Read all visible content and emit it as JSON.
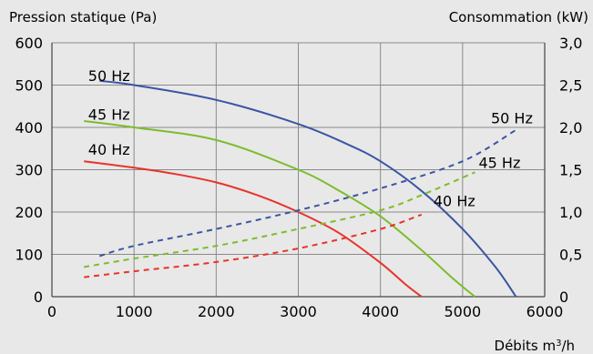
{
  "chart_data": {
    "type": "line",
    "y_left_label": "Pression statique (Pa)",
    "y_right_label": "Consommation (kW)",
    "x_label_prefix": "Débits m",
    "x_label_sup": "3",
    "x_label_suffix": "/h",
    "xlim": [
      0,
      6000
    ],
    "ylim_left": [
      0,
      600
    ],
    "ylim_right": [
      0,
      3.0
    ],
    "x_ticks": [
      {
        "value": 0,
        "label": "0"
      },
      {
        "value": 1000,
        "label": "1000"
      },
      {
        "value": 2000,
        "label": "2000"
      },
      {
        "value": 3000,
        "label": "3000"
      },
      {
        "value": 4000,
        "label": "4000"
      },
      {
        "value": 5000,
        "label": "5000"
      },
      {
        "value": 6000,
        "label": "6000"
      }
    ],
    "y_left_ticks": [
      {
        "value": 0,
        "label": "0"
      },
      {
        "value": 100,
        "label": "100"
      },
      {
        "value": 200,
        "label": "200"
      },
      {
        "value": 300,
        "label": "300"
      },
      {
        "value": 400,
        "label": "400"
      },
      {
        "value": 500,
        "label": "500"
      },
      {
        "value": 600,
        "label": "600"
      }
    ],
    "y_right_ticks": [
      {
        "value": 0,
        "label": "0"
      },
      {
        "value": 0.5,
        "label": "0,5"
      },
      {
        "value": 1.0,
        "label": "1,0"
      },
      {
        "value": 1.5,
        "label": "1,5"
      },
      {
        "value": 2.0,
        "label": "2,0"
      },
      {
        "value": 2.5,
        "label": "2,5"
      },
      {
        "value": 3.0,
        "label": "3,0"
      }
    ],
    "grid": true,
    "pressure_series": [
      {
        "name": "50 Hz",
        "color": "#3a55a4",
        "axis": "left",
        "points": [
          [
            580,
            510
          ],
          [
            1000,
            500
          ],
          [
            2000,
            465
          ],
          [
            3000,
            408
          ],
          [
            3600,
            360
          ],
          [
            4000,
            320
          ],
          [
            4500,
            250
          ],
          [
            5000,
            160
          ],
          [
            5400,
            70
          ],
          [
            5650,
            0
          ]
        ]
      },
      {
        "name": "45 Hz",
        "color": "#7cbd2c",
        "axis": "left",
        "points": [
          [
            390,
            415
          ],
          [
            1000,
            400
          ],
          [
            2000,
            370
          ],
          [
            3000,
            300
          ],
          [
            3500,
            250
          ],
          [
            4000,
            190
          ],
          [
            4500,
            110
          ],
          [
            4900,
            40
          ],
          [
            5150,
            0
          ]
        ]
      },
      {
        "name": "40 Hz",
        "color": "#e8332a",
        "axis": "left",
        "points": [
          [
            390,
            320
          ],
          [
            1000,
            305
          ],
          [
            1500,
            290
          ],
          [
            2000,
            270
          ],
          [
            2500,
            240
          ],
          [
            3000,
            200
          ],
          [
            3500,
            150
          ],
          [
            4000,
            80
          ],
          [
            4300,
            30
          ],
          [
            4500,
            0
          ]
        ]
      }
    ],
    "power_series": [
      {
        "name": "50 Hz",
        "color": "#3a55a4",
        "axis": "right",
        "points": [
          [
            580,
            0.48
          ],
          [
            1000,
            0.6
          ],
          [
            2000,
            0.8
          ],
          [
            3000,
            1.02
          ],
          [
            4000,
            1.28
          ],
          [
            5000,
            1.6
          ],
          [
            5650,
            1.97
          ]
        ]
      },
      {
        "name": "45 Hz",
        "color": "#7cbd2c",
        "axis": "right",
        "points": [
          [
            390,
            0.35
          ],
          [
            1000,
            0.45
          ],
          [
            2000,
            0.6
          ],
          [
            3000,
            0.8
          ],
          [
            4000,
            1.02
          ],
          [
            4500,
            1.2
          ],
          [
            5150,
            1.47
          ]
        ]
      },
      {
        "name": "40 Hz",
        "color": "#e8332a",
        "axis": "right",
        "points": [
          [
            390,
            0.23
          ],
          [
            1000,
            0.3
          ],
          [
            2000,
            0.41
          ],
          [
            3000,
            0.57
          ],
          [
            4000,
            0.8
          ],
          [
            4500,
            0.97
          ]
        ]
      }
    ],
    "curve_labels": [
      {
        "text": "50 Hz",
        "x": 950,
        "y": 510,
        "axis": "left",
        "anchor": "end"
      },
      {
        "text": "45 Hz",
        "x": 950,
        "y": 418,
        "axis": "left",
        "anchor": "end"
      },
      {
        "text": "40 Hz",
        "x": 950,
        "y": 335,
        "axis": "left",
        "anchor": "end"
      },
      {
        "text": "50 Hz",
        "x": 5600,
        "y": 2.05,
        "axis": "right",
        "anchor": "middle"
      },
      {
        "text": "45 Hz",
        "x": 5450,
        "y": 1.52,
        "axis": "right",
        "anchor": "middle"
      },
      {
        "text": "40 Hz",
        "x": 4900,
        "y": 1.07,
        "axis": "right",
        "anchor": "middle"
      }
    ]
  }
}
